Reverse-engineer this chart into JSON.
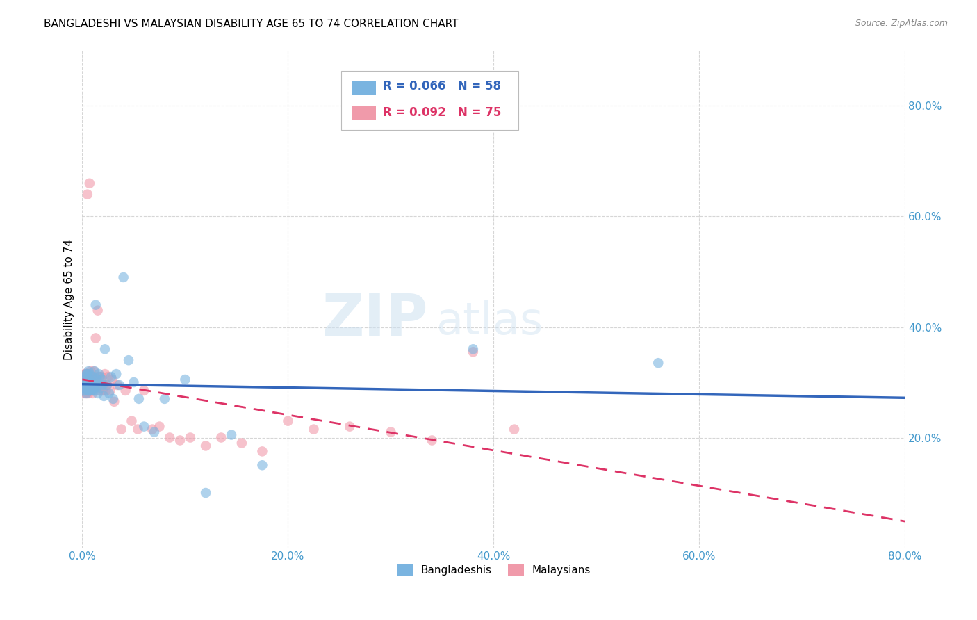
{
  "title": "BANGLADESHI VS MALAYSIAN DISABILITY AGE 65 TO 74 CORRELATION CHART",
  "source": "Source: ZipAtlas.com",
  "ylabel": "Disability Age 65 to 74",
  "xlim": [
    0.0,
    0.8
  ],
  "ylim": [
    0.0,
    0.9
  ],
  "x_ticks": [
    0.0,
    0.2,
    0.4,
    0.6,
    0.8
  ],
  "y_ticks": [
    0.0,
    0.2,
    0.4,
    0.6,
    0.8
  ],
  "x_tick_labels": [
    "0.0%",
    "20.0%",
    "40.0%",
    "60.0%",
    "80.0%"
  ],
  "y_tick_labels": [
    "",
    "20.0%",
    "40.0%",
    "60.0%",
    "80.0%"
  ],
  "blue_R": 0.066,
  "blue_N": 58,
  "pink_R": 0.092,
  "pink_N": 75,
  "blue_color": "#7ab4e0",
  "pink_color": "#f09aaa",
  "blue_line_color": "#3366bb",
  "pink_line_color": "#dd3366",
  "legend_label_blue": "Bangladeshis",
  "legend_label_pink": "Malaysians",
  "watermark_zip": "ZIP",
  "watermark_atlas": "atlas",
  "blue_x": [
    0.001,
    0.002,
    0.002,
    0.003,
    0.003,
    0.004,
    0.004,
    0.004,
    0.005,
    0.005,
    0.005,
    0.006,
    0.006,
    0.006,
    0.007,
    0.007,
    0.007,
    0.008,
    0.008,
    0.009,
    0.009,
    0.01,
    0.01,
    0.011,
    0.011,
    0.012,
    0.012,
    0.013,
    0.013,
    0.014,
    0.015,
    0.015,
    0.016,
    0.017,
    0.018,
    0.019,
    0.02,
    0.021,
    0.022,
    0.024,
    0.026,
    0.028,
    0.03,
    0.033,
    0.036,
    0.04,
    0.045,
    0.05,
    0.055,
    0.06,
    0.07,
    0.08,
    0.1,
    0.12,
    0.145,
    0.175,
    0.38,
    0.56
  ],
  "blue_y": [
    0.29,
    0.285,
    0.31,
    0.295,
    0.305,
    0.28,
    0.295,
    0.315,
    0.285,
    0.3,
    0.315,
    0.285,
    0.3,
    0.32,
    0.285,
    0.3,
    0.315,
    0.29,
    0.305,
    0.285,
    0.295,
    0.3,
    0.31,
    0.285,
    0.295,
    0.29,
    0.32,
    0.285,
    0.44,
    0.305,
    0.28,
    0.295,
    0.315,
    0.31,
    0.29,
    0.305,
    0.295,
    0.275,
    0.36,
    0.295,
    0.28,
    0.31,
    0.27,
    0.315,
    0.295,
    0.49,
    0.34,
    0.3,
    0.27,
    0.22,
    0.21,
    0.27,
    0.305,
    0.1,
    0.205,
    0.15,
    0.36,
    0.335
  ],
  "pink_x": [
    0.001,
    0.001,
    0.002,
    0.002,
    0.002,
    0.003,
    0.003,
    0.003,
    0.004,
    0.004,
    0.004,
    0.005,
    0.005,
    0.005,
    0.005,
    0.006,
    0.006,
    0.006,
    0.007,
    0.007,
    0.007,
    0.008,
    0.008,
    0.008,
    0.008,
    0.009,
    0.009,
    0.009,
    0.01,
    0.01,
    0.01,
    0.011,
    0.011,
    0.012,
    0.012,
    0.013,
    0.013,
    0.014,
    0.015,
    0.015,
    0.016,
    0.017,
    0.018,
    0.019,
    0.02,
    0.021,
    0.022,
    0.023,
    0.024,
    0.025,
    0.027,
    0.029,
    0.031,
    0.034,
    0.038,
    0.042,
    0.048,
    0.054,
    0.06,
    0.068,
    0.075,
    0.085,
    0.095,
    0.105,
    0.12,
    0.135,
    0.155,
    0.175,
    0.2,
    0.225,
    0.26,
    0.3,
    0.34,
    0.38,
    0.42
  ],
  "pink_y": [
    0.285,
    0.305,
    0.28,
    0.295,
    0.315,
    0.285,
    0.3,
    0.315,
    0.28,
    0.295,
    0.315,
    0.285,
    0.3,
    0.315,
    0.64,
    0.28,
    0.3,
    0.31,
    0.285,
    0.295,
    0.66,
    0.285,
    0.3,
    0.32,
    0.285,
    0.295,
    0.31,
    0.285,
    0.295,
    0.31,
    0.28,
    0.295,
    0.32,
    0.29,
    0.31,
    0.295,
    0.38,
    0.305,
    0.295,
    0.43,
    0.31,
    0.285,
    0.295,
    0.31,
    0.285,
    0.295,
    0.315,
    0.285,
    0.295,
    0.31,
    0.285,
    0.305,
    0.265,
    0.295,
    0.215,
    0.285,
    0.23,
    0.215,
    0.285,
    0.215,
    0.22,
    0.2,
    0.195,
    0.2,
    0.185,
    0.2,
    0.19,
    0.175,
    0.23,
    0.215,
    0.22,
    0.21,
    0.195,
    0.355,
    0.215
  ]
}
